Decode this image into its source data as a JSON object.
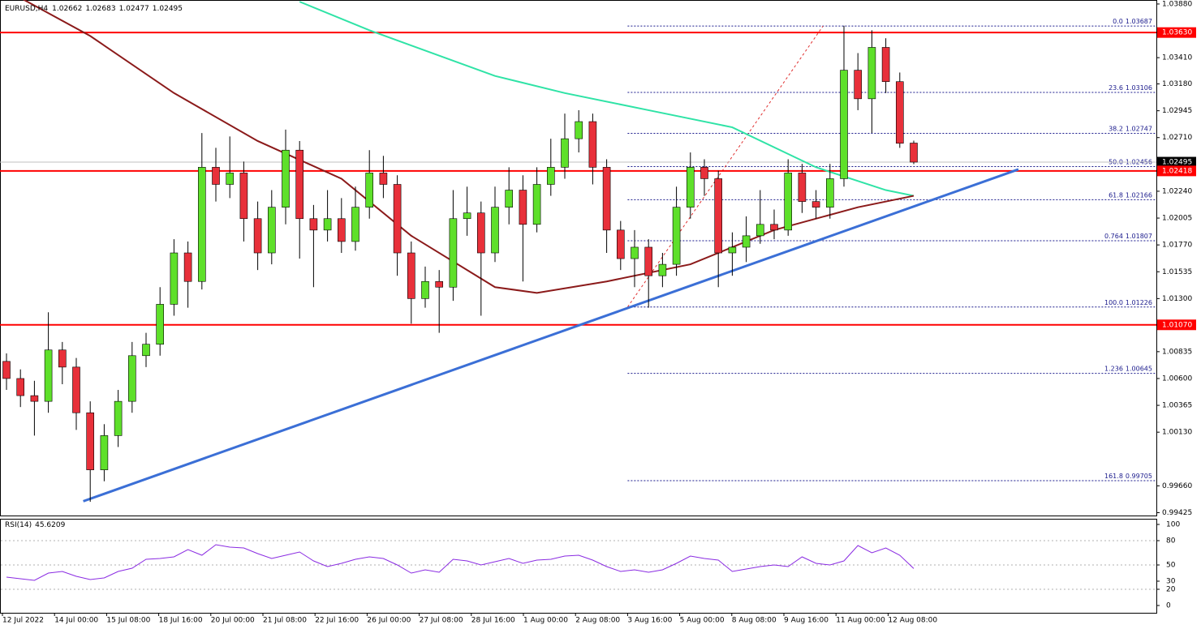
{
  "chart_data": {
    "type": "candlestick",
    "symbol": "EURUSD,H4",
    "bull_color": "#5ee02a",
    "bear_color": "#e8303a",
    "candles": [
      [
        1.0075,
        1.0082,
        1.005,
        1.006
      ],
      [
        1.006,
        1.0068,
        1.0035,
        1.0045
      ],
      [
        1.0045,
        1.0058,
        1.001,
        1.004
      ],
      [
        1.004,
        1.0118,
        1.003,
        1.0085
      ],
      [
        1.0085,
        1.0092,
        1.0055,
        1.007
      ],
      [
        1.007,
        1.0078,
        1.0015,
        1.003
      ],
      [
        1.003,
        1.004,
        0.9952,
        0.998
      ],
      [
        0.998,
        1.002,
        0.997,
        1.001
      ],
      [
        1.001,
        1.005,
        1.0,
        1.004
      ],
      [
        1.004,
        1.0092,
        1.003,
        1.008
      ],
      [
        1.008,
        1.01,
        1.007,
        1.009
      ],
      [
        1.009,
        1.014,
        1.008,
        1.0125
      ],
      [
        1.0125,
        1.0182,
        1.0115,
        1.017
      ],
      [
        1.017,
        1.018,
        1.0122,
        1.0145
      ],
      [
        1.0145,
        1.0275,
        1.0138,
        1.0245
      ],
      [
        1.0245,
        1.0262,
        1.0215,
        1.023
      ],
      [
        1.023,
        1.0272,
        1.0218,
        1.024
      ],
      [
        1.024,
        1.025,
        1.018,
        1.02
      ],
      [
        1.02,
        1.0215,
        1.0155,
        1.017
      ],
      [
        1.017,
        1.0225,
        1.016,
        1.021
      ],
      [
        1.021,
        1.0278,
        1.0195,
        1.026
      ],
      [
        1.026,
        1.0268,
        1.0165,
        1.02
      ],
      [
        1.02,
        1.0212,
        1.014,
        1.019
      ],
      [
        1.019,
        1.0225,
        1.018,
        1.02
      ],
      [
        1.02,
        1.0218,
        1.017,
        1.018
      ],
      [
        1.018,
        1.0228,
        1.0172,
        1.021
      ],
      [
        1.021,
        1.026,
        1.02,
        1.024
      ],
      [
        1.024,
        1.0255,
        1.0218,
        1.023
      ],
      [
        1.023,
        1.0238,
        1.015,
        1.017
      ],
      [
        1.017,
        1.018,
        1.0108,
        1.013
      ],
      [
        1.013,
        1.0158,
        1.0122,
        1.0145
      ],
      [
        1.0145,
        1.0155,
        1.01,
        1.014
      ],
      [
        1.014,
        1.0225,
        1.0128,
        1.02
      ],
      [
        1.02,
        1.0228,
        1.0185,
        1.0205
      ],
      [
        1.0205,
        1.0215,
        1.0115,
        1.017
      ],
      [
        1.017,
        1.0228,
        1.0162,
        1.021
      ],
      [
        1.021,
        1.0245,
        1.0195,
        1.0225
      ],
      [
        1.0225,
        1.0238,
        1.0145,
        1.0195
      ],
      [
        1.0195,
        1.0245,
        1.0188,
        1.023
      ],
      [
        1.023,
        1.027,
        1.022,
        1.0245
      ],
      [
        1.0245,
        1.0292,
        1.0235,
        1.027
      ],
      [
        1.027,
        1.0295,
        1.0258,
        1.0285
      ],
      [
        1.0285,
        1.0292,
        1.023,
        1.0245
      ],
      [
        1.0245,
        1.0252,
        1.017,
        1.019
      ],
      [
        1.019,
        1.0198,
        1.0155,
        1.0165
      ],
      [
        1.0165,
        1.019,
        1.014,
        1.0175
      ],
      [
        1.0175,
        1.0182,
        1.0122,
        1.015
      ],
      [
        1.015,
        1.017,
        1.014,
        1.016
      ],
      [
        1.016,
        1.0228,
        1.015,
        1.021
      ],
      [
        1.021,
        1.0258,
        1.02,
        1.0245
      ],
      [
        1.0245,
        1.0252,
        1.022,
        1.0235
      ],
      [
        1.0235,
        1.0242,
        1.014,
        1.017
      ],
      [
        1.017,
        1.0188,
        1.015,
        1.0175
      ],
      [
        1.0175,
        1.0202,
        1.0162,
        1.0185
      ],
      [
        1.0185,
        1.0225,
        1.0178,
        1.0195
      ],
      [
        1.0195,
        1.0208,
        1.0182,
        1.019
      ],
      [
        1.019,
        1.0252,
        1.0185,
        1.024
      ],
      [
        1.024,
        1.0248,
        1.0205,
        1.0215
      ],
      [
        1.0215,
        1.0225,
        1.02,
        1.021
      ],
      [
        1.021,
        1.0248,
        1.02,
        1.0235
      ],
      [
        1.0235,
        1.0369,
        1.0228,
        1.033
      ],
      [
        1.033,
        1.0345,
        1.0295,
        1.0305
      ],
      [
        1.0305,
        1.0365,
        1.0275,
        1.035
      ],
      [
        1.035,
        1.0358,
        1.031,
        1.032
      ],
      [
        1.032,
        1.0328,
        1.0262,
        1.0266
      ],
      [
        1.02662,
        1.02683,
        1.02477,
        1.02495
      ]
    ],
    "ylim": [
      0.994,
      1.03915
    ],
    "yticks": [
      {
        "value": 1.0388,
        "label": "1.03880"
      },
      {
        "value": 1.0341,
        "label": "1.03410"
      },
      {
        "value": 1.0318,
        "label": "1.03180"
      },
      1.02945,
      {
        "value": 1.0271,
        "label": "1.02710"
      },
      {
        "value": 1.0224,
        "label": "1.02240"
      },
      1.02005,
      {
        "value": 1.0177,
        "label": "1.01770"
      },
      1.01535,
      {
        "value": 1.013,
        "label": "1.01300"
      },
      1.00835,
      {
        "value": 1.006,
        "label": "1.00600"
      },
      1.00365,
      {
        "value": 1.0013,
        "label": "1.00130"
      },
      {
        "value": 0.9966,
        "label": "0.99660"
      },
      0.99425
    ],
    "x_labels": [
      "12 Jul 2022",
      "14 Jul 00:00",
      "15 Jul 08:00",
      "18 Jul 16:00",
      "20 Jul 00:00",
      "21 Jul 08:00",
      "22 Jul 16:00",
      "26 Jul 00:00",
      "27 Jul 08:00",
      "28 Jul 16:00",
      "1 Aug 00:00",
      "2 Aug 08:00",
      "3 Aug 16:00",
      "5 Aug 00:00",
      "8 Aug 08:00",
      "9 Aug 16:00",
      "11 Aug 00:00",
      "12 Aug 08:00"
    ],
    "levels": {
      "color": "#ff0000",
      "values": [
        {
          "value": 1.0363,
          "label": "1.03630"
        },
        1.02418,
        {
          "value": 1.0107,
          "label": "1.01070"
        }
      ]
    },
    "moving_averages": [
      {
        "color": "#2fe3a6",
        "x": [
          21,
          26,
          35,
          40,
          46,
          52,
          58,
          63,
          65
        ],
        "values": [
          1.039,
          1.0365,
          1.0325,
          1.031,
          1.0295,
          1.028,
          1.0245,
          1.0225,
          1.022
        ]
      },
      {
        "color": "#8b1a1a",
        "x": [
          0,
          6,
          12,
          18,
          24,
          29,
          35,
          38,
          43,
          49,
          55,
          61,
          65
        ],
        "values": [
          1.04,
          1.036,
          1.031,
          1.0268,
          1.0235,
          1.0185,
          1.014,
          1.0135,
          1.0145,
          1.016,
          1.019,
          1.021,
          1.022
        ]
      }
    ],
    "trendline": {
      "color": "#3b6fd6",
      "x": [
        5.5,
        72.5
      ],
      "values": [
        0.99525,
        1.02432
      ]
    },
    "fib": {
      "x": [
        44.5,
        58.5
      ],
      "values": [
        1.01226,
        1.03687
      ],
      "levels": [
        {
          "ratio": "0.0",
          "price": 1.03687
        },
        {
          "ratio": "23.6",
          "price": 1.03106
        },
        {
          "ratio": "38.2",
          "price": 1.02747
        },
        {
          "ratio": "50.0",
          "price": 1.02456
        },
        {
          "ratio": "61.8",
          "price": 1.02166
        },
        {
          "ratio": "0.764",
          "price": 1.01807
        },
        {
          "ratio": "100.0",
          "price": 1.01226
        },
        {
          "ratio": "1.236",
          "price": 1.00645
        },
        {
          "ratio": "161.8",
          "price": 0.99705
        }
      ]
    },
    "rsi": {
      "name": "RSI(14)",
      "color": "#8a2be2",
      "ylim": [
        -9,
        107
      ],
      "yticks": [
        100,
        80,
        50,
        30,
        20,
        0
      ],
      "levels": [
        80,
        50,
        20
      ],
      "values": [
        35,
        33,
        31,
        40,
        42,
        36,
        32,
        34,
        42,
        46,
        57,
        58,
        60,
        69,
        62,
        75,
        72,
        71,
        64,
        58,
        62,
        66,
        55,
        48,
        52,
        57,
        60,
        58,
        50,
        40,
        44,
        41,
        57,
        55,
        50,
        54,
        58,
        52,
        56,
        57,
        61,
        62,
        56,
        48,
        42,
        44,
        41,
        44,
        52,
        61,
        58,
        56,
        42,
        45,
        48,
        50,
        48,
        60,
        52,
        50,
        55,
        74,
        65,
        71,
        62,
        45.6209
      ]
    }
  }
}
